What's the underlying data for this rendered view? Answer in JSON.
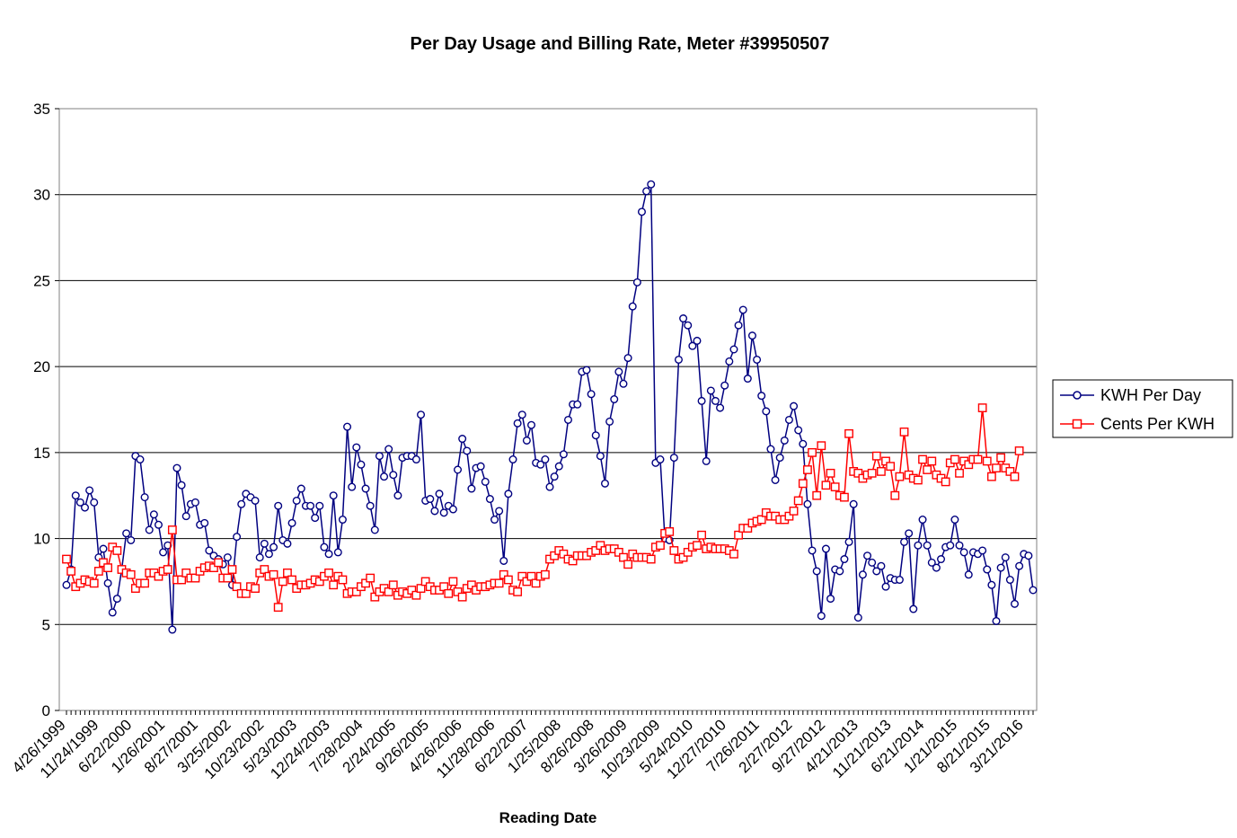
{
  "chart_data": {
    "type": "line",
    "title": "Per Day Usage and Billing Rate, Meter #39950507",
    "xlabel": "Reading Date",
    "ylabel": "",
    "ylim": [
      0,
      35
    ],
    "yticks": [
      0,
      5,
      10,
      15,
      20,
      25,
      30,
      35
    ],
    "grid": true,
    "legend_position": "right",
    "x_tick_labels": [
      "4/26/1999",
      "11/24/1999",
      "6/22/2000",
      "1/26/2001",
      "8/27/2001",
      "3/25/2002",
      "10/23/2002",
      "5/23/2003",
      "12/24/2003",
      "7/28/2004",
      "2/24/2005",
      "9/26/2005",
      "4/26/2006",
      "11/28/2006",
      "6/22/2007",
      "1/25/2008",
      "8/26/2008",
      "3/26/2009",
      "10/23/2009",
      "5/24/2010",
      "12/27/2010",
      "7/26/2011",
      "2/27/2012",
      "9/27/2012",
      "4/21/2013",
      "11/21/2013",
      "6/21/2014",
      "1/21/2015",
      "8/21/2015",
      "3/21/2016"
    ],
    "series": [
      {
        "name": "KWH Per Day",
        "color": "#000080",
        "marker": "circle",
        "values": [
          7.3,
          8.2,
          12.5,
          12.1,
          11.8,
          12.8,
          12.1,
          8.9,
          9.4,
          7.4,
          5.7,
          6.5,
          8.2,
          10.3,
          9.9,
          14.8,
          14.6,
          12.4,
          10.5,
          11.4,
          10.8,
          9.2,
          9.6,
          4.7,
          14.1,
          13.1,
          11.3,
          12.0,
          12.1,
          10.8,
          10.9,
          9.3,
          9.0,
          8.8,
          8.5,
          8.9,
          7.3,
          10.1,
          12.0,
          12.6,
          12.4,
          12.2,
          8.9,
          9.7,
          9.1,
          9.5,
          11.9,
          9.9,
          9.7,
          10.9,
          12.2,
          12.9,
          11.9,
          11.9,
          11.2,
          11.9,
          9.5,
          9.1,
          12.5,
          9.2,
          11.1,
          16.5,
          13.0,
          15.3,
          14.3,
          12.9,
          11.9,
          10.5,
          14.8,
          13.6,
          15.2,
          13.7,
          12.5,
          14.7,
          14.8,
          14.8,
          14.6,
          17.2,
          12.2,
          12.3,
          11.6,
          12.6,
          11.5,
          11.9,
          11.7,
          14.0,
          15.8,
          15.1,
          12.9,
          14.1,
          14.2,
          13.3,
          12.3,
          11.1,
          11.6,
          8.7,
          12.6,
          14.6,
          16.7,
          17.2,
          15.7,
          16.6,
          14.4,
          14.3,
          14.6,
          13.0,
          13.6,
          14.2,
          14.9,
          16.9,
          17.8,
          17.8,
          19.7,
          19.8,
          18.4,
          16.0,
          14.8,
          13.2,
          16.8,
          18.1,
          19.7,
          19.0,
          20.5,
          23.5,
          24.9,
          29.0,
          30.2,
          30.6,
          14.4,
          14.6,
          10.0,
          9.9,
          14.7,
          20.4,
          22.8,
          22.4,
          21.2,
          21.5,
          18.0,
          14.5,
          18.6,
          18.0,
          17.6,
          18.9,
          20.3,
          21.0,
          22.4,
          23.3,
          19.3,
          21.8,
          20.4,
          18.3,
          17.4,
          15.2,
          13.4,
          14.7,
          15.7,
          16.9,
          17.7,
          16.3,
          15.5,
          12.0,
          9.3,
          8.1,
          5.5,
          9.4,
          6.5,
          8.2,
          8.1,
          8.8,
          9.8,
          12.0,
          5.4,
          7.9,
          9.0,
          8.6,
          8.1,
          8.4,
          7.2,
          7.7,
          7.6,
          7.6,
          9.8,
          10.3,
          5.9,
          9.6,
          11.1,
          9.6,
          8.6,
          8.3,
          8.8,
          9.5,
          9.6,
          11.1,
          9.6,
          9.2,
          7.9,
          9.2,
          9.1,
          9.3,
          8.2,
          7.3,
          5.2,
          8.3,
          8.9,
          7.6,
          6.2,
          8.4,
          9.1,
          9.0,
          7.0
        ]
      },
      {
        "name": "Cents Per KWH",
        "color": "#ff0000",
        "marker": "square",
        "values": [
          8.8,
          8.1,
          7.2,
          7.4,
          7.6,
          7.5,
          7.4,
          8.1,
          8.6,
          8.3,
          9.5,
          9.3,
          8.2,
          8.0,
          7.9,
          7.1,
          7.4,
          7.4,
          8.0,
          8.0,
          7.8,
          8.1,
          8.2,
          10.5,
          7.6,
          7.6,
          8.0,
          7.7,
          7.7,
          8.1,
          8.3,
          8.4,
          8.3,
          8.6,
          7.7,
          7.7,
          8.2,
          7.2,
          6.8,
          6.8,
          7.2,
          7.1,
          8.0,
          8.2,
          7.8,
          7.9,
          6.0,
          7.5,
          8.0,
          7.6,
          7.1,
          7.3,
          7.3,
          7.4,
          7.6,
          7.5,
          7.8,
          8.0,
          7.3,
          7.8,
          7.6,
          6.8,
          6.9,
          6.9,
          7.2,
          7.4,
          7.7,
          6.6,
          6.9,
          7.1,
          6.9,
          7.3,
          6.7,
          6.9,
          6.8,
          7.0,
          6.7,
          7.1,
          7.5,
          7.2,
          7.0,
          7.0,
          7.2,
          6.8,
          7.5,
          6.9,
          6.6,
          7.1,
          7.3,
          7.0,
          7.2,
          7.2,
          7.3,
          7.4,
          7.4,
          7.9,
          7.6,
          7.0,
          6.9,
          7.8,
          7.5,
          7.8,
          7.4,
          7.8,
          7.9,
          8.8,
          9.0,
          9.3,
          9.1,
          8.8,
          8.7,
          9.0,
          9.0,
          9.0,
          9.2,
          9.3,
          9.6,
          9.3,
          9.4,
          9.4,
          9.2,
          8.9,
          8.5,
          9.1,
          8.9,
          8.9,
          8.9,
          8.8,
          9.5,
          9.6,
          10.3,
          10.4,
          9.3,
          8.8,
          8.9,
          9.2,
          9.5,
          9.6,
          10.2,
          9.4,
          9.5,
          9.4,
          9.4,
          9.4,
          9.3,
          9.1,
          10.2,
          10.6,
          10.6,
          10.9,
          11.0,
          11.1,
          11.5,
          11.3,
          11.3,
          11.1,
          11.1,
          11.3,
          11.6,
          12.2,
          13.2,
          14.0,
          15.0,
          12.5,
          15.4,
          13.1,
          13.8,
          13.0,
          12.5,
          12.4,
          16.1,
          13.9,
          13.8,
          13.5,
          13.7,
          13.8,
          14.8,
          13.9,
          14.5,
          14.2,
          12.5,
          13.6,
          16.2,
          13.7,
          13.5,
          13.4,
          14.6,
          14.0,
          14.5,
          13.7,
          13.5,
          13.3,
          14.4,
          14.6,
          13.8,
          14.5,
          14.3,
          14.6,
          14.6,
          17.6,
          14.5,
          13.6,
          14.1,
          14.7,
          14.1,
          13.9,
          13.6,
          15.1
        ]
      }
    ]
  }
}
